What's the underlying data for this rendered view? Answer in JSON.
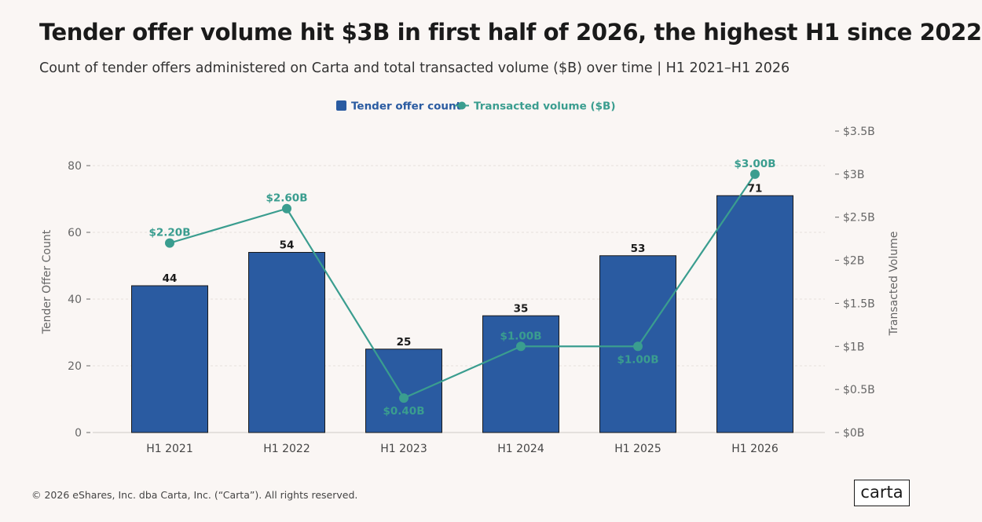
{
  "title": "Tender offer volume hit $3B in first half of 2026, the highest H1 since 2022",
  "subtitle": "Count of tender offers administered on Carta and total transacted volume ($B) over time | H1 2021–H1 2026",
  "footer": "© 2026 eShares, Inc. dba Carta, Inc. (“Carta”). All rights reserved.",
  "logo": "carta",
  "colors": {
    "bar": "#2a5ba1",
    "bar_edge": "#1a1a1a",
    "line": "#3a9d8f",
    "axis_text": "#666666",
    "grid": "#e6e0dd"
  },
  "chart_data": {
    "type": "bar+line",
    "categories": [
      "H1 2021",
      "H1 2022",
      "H1 2023",
      "H1 2024",
      "H1 2025",
      "H1 2026"
    ],
    "series": [
      {
        "name": "Tender offer count",
        "type": "bar",
        "axis": "left",
        "values": [
          44,
          54,
          25,
          35,
          53,
          71
        ],
        "labels": [
          "44",
          "54",
          "25",
          "35",
          "53",
          "71"
        ]
      },
      {
        "name": "Transacted volume ($B)",
        "type": "line",
        "axis": "right",
        "values": [
          2.2,
          2.6,
          0.4,
          1.0,
          1.0,
          3.0
        ],
        "labels": [
          "$2.20B",
          "$2.60B",
          "$0.40B",
          "$1.00B",
          "$1.00B",
          "$3.00B"
        ]
      }
    ],
    "ylabel_left": "Tender Offer Count",
    "ylabel_right": "Transacted Volume",
    "ylim_left": [
      0,
      80
    ],
    "yticks_left": [
      0,
      20,
      40,
      60,
      80
    ],
    "ytick_labels_left": [
      "0",
      "20",
      "40",
      "60",
      "80"
    ],
    "ylim_right": [
      0,
      3.5
    ],
    "yticks_right": [
      0,
      0.5,
      1,
      1.5,
      2,
      2.5,
      3,
      3.5
    ],
    "ytick_labels_right": [
      "$0B",
      "$0.5B",
      "$1B",
      "$1.5B",
      "$2B",
      "$2.5B",
      "$3B",
      "$3.5B"
    ],
    "legend_position": "top-center",
    "grid": true
  }
}
